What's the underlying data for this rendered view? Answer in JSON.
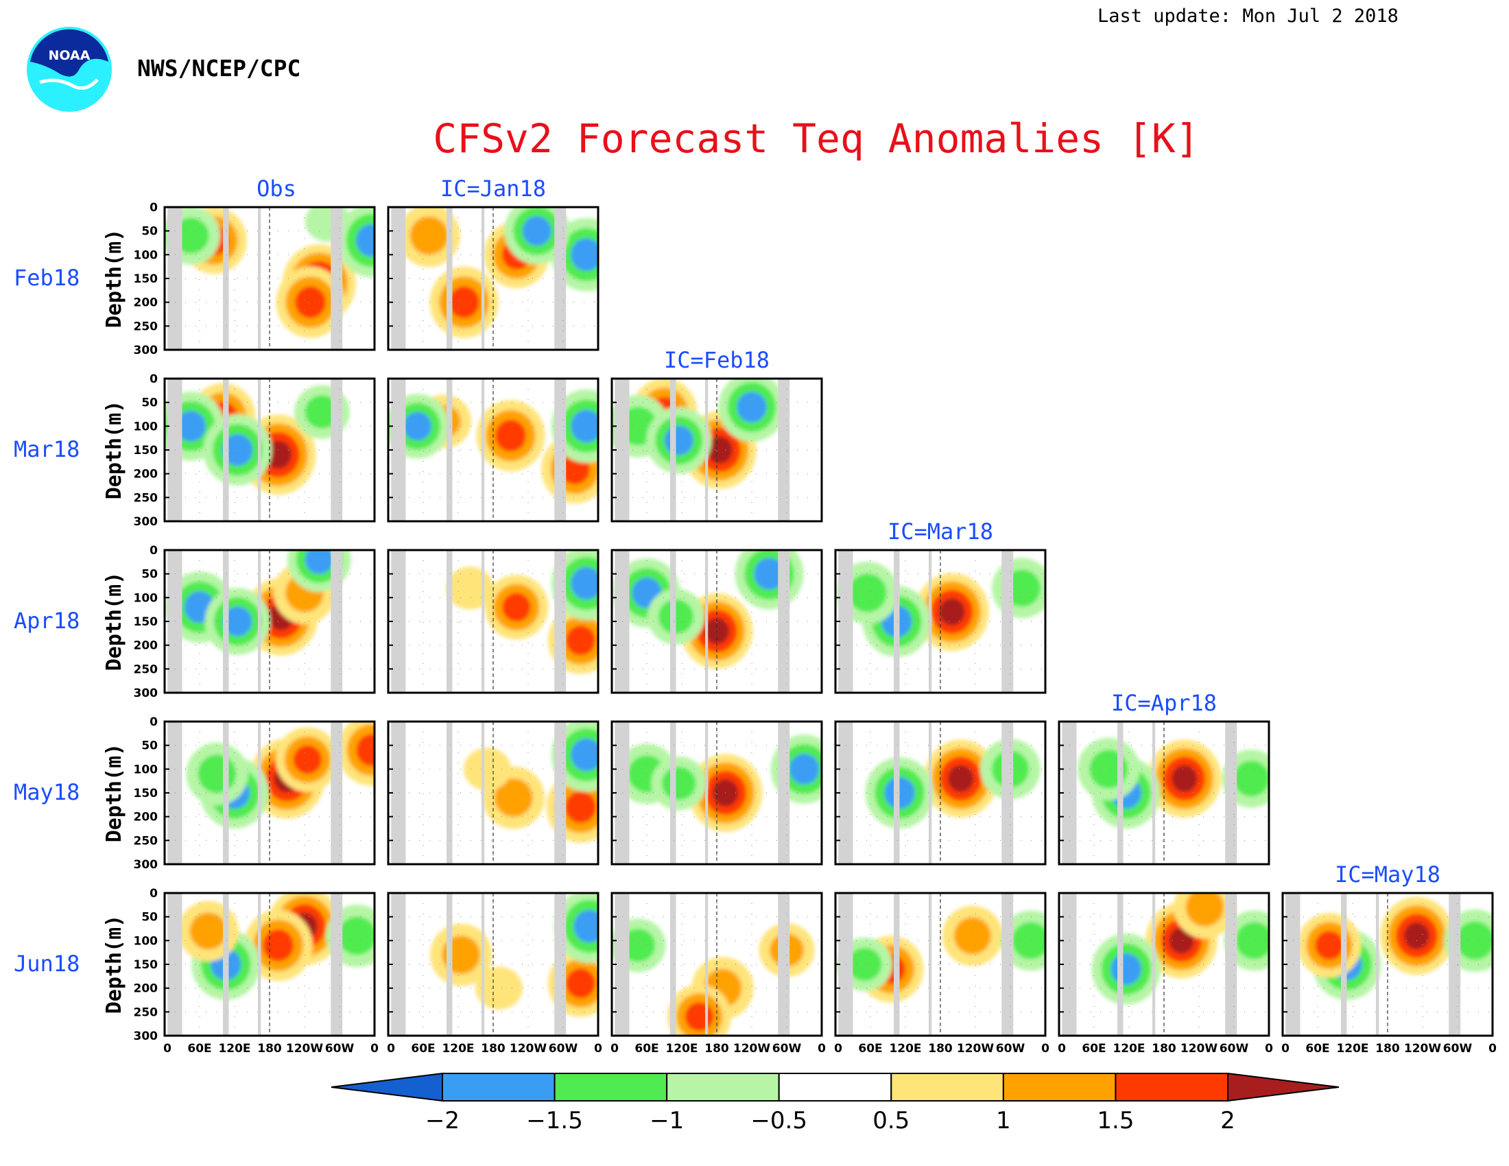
{
  "header": {
    "last_update": "Last update: Mon Jul  2 2018",
    "agency": "NWS/NCEP/CPC",
    "logo_text": "NOAA"
  },
  "colors": {
    "title": "#e8101a",
    "panel_labels": "#1a4cff",
    "land_mask": "#d3d3d3",
    "scale": [
      "#1560d0",
      "#3a9df4",
      "#50eb50",
      "#b6f5a6",
      "#ffffff",
      "#ffe47a",
      "#ffa200",
      "#ff3a00",
      "#a81e1e"
    ]
  },
  "chart_data": {
    "type": "heatmap",
    "title": "CFSv2 Forecast Teq Anomalies [K]",
    "ylabel": "Depth(m)",
    "y_ticks": [
      "0",
      "50",
      "100",
      "150",
      "200",
      "250",
      "300"
    ],
    "ylim": [
      0,
      300
    ],
    "x_ticks": [
      "0",
      "60E",
      "120E",
      "180",
      "120W",
      "60W",
      "0"
    ],
    "xlim_longitude": [
      0,
      360
    ],
    "rows": [
      "Feb18",
      "Mar18",
      "Apr18",
      "May18",
      "Jun18"
    ],
    "columns": [
      "Obs",
      "IC=Jan18",
      "IC=Feb18",
      "IC=Mar18",
      "IC=Apr18",
      "IC=May18"
    ],
    "colorbar": {
      "levels": [
        -2,
        -1.5,
        -1,
        -0.5,
        0.5,
        1,
        1.5,
        2
      ],
      "tick_labels": [
        "−2",
        "−1.5",
        "−1",
        "−0.5",
        "0.5",
        "1",
        "1.5",
        "2"
      ],
      "extend": "both"
    },
    "land_bands_longitude": [
      [
        5,
        30
      ],
      [
        100,
        110
      ],
      [
        160,
        165
      ],
      [
        285,
        305
      ]
    ],
    "reference_line_longitude": 180,
    "anomaly_patches": [
      {
        "panel": "Feb18/Obs",
        "features": [
          {
            "lon": 265,
            "depth": 160,
            "value": 2.3
          },
          {
            "lon": 250,
            "depth": 200,
            "value": 2.0
          },
          {
            "lon": 85,
            "depth": 70,
            "value": 1.8
          },
          {
            "lon": 355,
            "depth": 70,
            "value": -2.1
          },
          {
            "lon": 45,
            "depth": 60,
            "value": -1.4
          },
          {
            "lon": 280,
            "depth": 30,
            "value": -0.6
          }
        ]
      },
      {
        "panel": "Feb18/IC=Jan18",
        "features": [
          {
            "lon": 130,
            "depth": 200,
            "value": 2.0
          },
          {
            "lon": 220,
            "depth": 100,
            "value": 1.8
          },
          {
            "lon": 70,
            "depth": 60,
            "value": 1.6
          },
          {
            "lon": 340,
            "depth": 100,
            "value": -2.1
          },
          {
            "lon": 255,
            "depth": 50,
            "value": -1.8
          }
        ]
      },
      {
        "panel": "Mar18/Obs",
        "features": [
          {
            "lon": 195,
            "depth": 160,
            "value": 2.4
          },
          {
            "lon": 100,
            "depth": 80,
            "value": 1.8
          },
          {
            "lon": 45,
            "depth": 100,
            "value": -1.9
          },
          {
            "lon": 125,
            "depth": 150,
            "value": -2.0
          },
          {
            "lon": 270,
            "depth": 70,
            "value": -1.2
          }
        ]
      },
      {
        "panel": "Mar18/IC=Jan18",
        "features": [
          {
            "lon": 210,
            "depth": 120,
            "value": 2.0
          },
          {
            "lon": 320,
            "depth": 190,
            "value": 1.9
          },
          {
            "lon": 95,
            "depth": 90,
            "value": 1.2
          },
          {
            "lon": 340,
            "depth": 100,
            "value": -2.1
          },
          {
            "lon": 50,
            "depth": 100,
            "value": -1.7
          }
        ]
      },
      {
        "panel": "Mar18/IC=Feb18",
        "features": [
          {
            "lon": 185,
            "depth": 150,
            "value": 2.3
          },
          {
            "lon": 90,
            "depth": 70,
            "value": 1.8
          },
          {
            "lon": 240,
            "depth": 60,
            "value": -1.9
          },
          {
            "lon": 45,
            "depth": 100,
            "value": -1.6
          },
          {
            "lon": 115,
            "depth": 130,
            "value": -1.8
          }
        ]
      },
      {
        "panel": "Apr18/Obs",
        "features": [
          {
            "lon": 200,
            "depth": 140,
            "value": 2.3
          },
          {
            "lon": 240,
            "depth": 90,
            "value": 1.6
          },
          {
            "lon": 60,
            "depth": 120,
            "value": -2.0
          },
          {
            "lon": 125,
            "depth": 150,
            "value": -1.8
          },
          {
            "lon": 265,
            "depth": 20,
            "value": -1.7
          }
        ]
      },
      {
        "panel": "Apr18/IC=Jan18",
        "features": [
          {
            "lon": 220,
            "depth": 120,
            "value": 1.7
          },
          {
            "lon": 330,
            "depth": 190,
            "value": 1.8
          },
          {
            "lon": 340,
            "depth": 70,
            "value": -2.1
          },
          {
            "lon": 140,
            "depth": 80,
            "value": 0.7
          }
        ]
      },
      {
        "panel": "Apr18/IC=Feb18",
        "features": [
          {
            "lon": 180,
            "depth": 170,
            "value": 2.2
          },
          {
            "lon": 60,
            "depth": 90,
            "value": -1.9
          },
          {
            "lon": 270,
            "depth": 50,
            "value": -2.0
          },
          {
            "lon": 110,
            "depth": 140,
            "value": -1.3
          }
        ]
      },
      {
        "panel": "Apr18/IC=Mar18",
        "features": [
          {
            "lon": 200,
            "depth": 130,
            "value": 2.3
          },
          {
            "lon": 105,
            "depth": 150,
            "value": -2.0
          },
          {
            "lon": 55,
            "depth": 90,
            "value": -1.6
          },
          {
            "lon": 320,
            "depth": 80,
            "value": -1.5
          }
        ]
      },
      {
        "panel": "May18/Obs",
        "features": [
          {
            "lon": 210,
            "depth": 120,
            "value": 2.4
          },
          {
            "lon": 245,
            "depth": 80,
            "value": 1.7
          },
          {
            "lon": 120,
            "depth": 150,
            "value": -2.0
          },
          {
            "lon": 90,
            "depth": 110,
            "value": -1.6
          },
          {
            "lon": 355,
            "depth": 60,
            "value": 2.0
          }
        ]
      },
      {
        "panel": "May18/IC=Jan18",
        "features": [
          {
            "lon": 215,
            "depth": 160,
            "value": 1.6
          },
          {
            "lon": 330,
            "depth": 180,
            "value": 2.0
          },
          {
            "lon": 340,
            "depth": 70,
            "value": -2.1
          },
          {
            "lon": 170,
            "depth": 100,
            "value": 0.7
          }
        ]
      },
      {
        "panel": "May18/IC=Feb18",
        "features": [
          {
            "lon": 195,
            "depth": 150,
            "value": 2.3
          },
          {
            "lon": 60,
            "depth": 110,
            "value": -1.5
          },
          {
            "lon": 330,
            "depth": 100,
            "value": -1.9
          },
          {
            "lon": 115,
            "depth": 130,
            "value": -1.2
          }
        ]
      },
      {
        "panel": "May18/IC=Mar18",
        "features": [
          {
            "lon": 215,
            "depth": 120,
            "value": 2.3
          },
          {
            "lon": 110,
            "depth": 150,
            "value": -2.0
          },
          {
            "lon": 300,
            "depth": 100,
            "value": -1.5
          }
        ]
      },
      {
        "panel": "May18/IC=Apr18",
        "features": [
          {
            "lon": 215,
            "depth": 120,
            "value": 2.3
          },
          {
            "lon": 115,
            "depth": 150,
            "value": -2.0
          },
          {
            "lon": 85,
            "depth": 100,
            "value": -1.6
          },
          {
            "lon": 330,
            "depth": 120,
            "value": -1.4
          }
        ]
      },
      {
        "panel": "Jun18/Obs",
        "features": [
          {
            "lon": 240,
            "depth": 70,
            "value": 2.3
          },
          {
            "lon": 195,
            "depth": 110,
            "value": 2.0
          },
          {
            "lon": 105,
            "depth": 150,
            "value": -2.0
          },
          {
            "lon": 330,
            "depth": 90,
            "value": -1.6
          },
          {
            "lon": 75,
            "depth": 80,
            "value": 1.5
          }
        ]
      },
      {
        "panel": "Jun18/IC=Jan18",
        "features": [
          {
            "lon": 125,
            "depth": 130,
            "value": 1.6
          },
          {
            "lon": 330,
            "depth": 190,
            "value": 1.8
          },
          {
            "lon": 345,
            "depth": 70,
            "value": -2.1
          },
          {
            "lon": 190,
            "depth": 200,
            "value": 0.7
          }
        ]
      },
      {
        "panel": "Jun18/IC=Feb18",
        "features": [
          {
            "lon": 190,
            "depth": 200,
            "value": 1.6
          },
          {
            "lon": 150,
            "depth": 260,
            "value": 1.7
          },
          {
            "lon": 300,
            "depth": 120,
            "value": 1.2
          },
          {
            "lon": 45,
            "depth": 110,
            "value": -1.2
          }
        ]
      },
      {
        "panel": "Jun18/IC=Mar18",
        "features": [
          {
            "lon": 235,
            "depth": 90,
            "value": 1.5
          },
          {
            "lon": 95,
            "depth": 160,
            "value": 1.8
          },
          {
            "lon": 335,
            "depth": 100,
            "value": -1.5
          },
          {
            "lon": 50,
            "depth": 150,
            "value": -1.2
          }
        ]
      },
      {
        "panel": "Jun18/IC=Apr18",
        "features": [
          {
            "lon": 210,
            "depth": 100,
            "value": 2.2
          },
          {
            "lon": 115,
            "depth": 160,
            "value": -2.0
          },
          {
            "lon": 335,
            "depth": 100,
            "value": -1.5
          },
          {
            "lon": 250,
            "depth": 30,
            "value": 1.6
          }
        ]
      },
      {
        "panel": "Jun18/IC=May18",
        "features": [
          {
            "lon": 230,
            "depth": 90,
            "value": 2.3
          },
          {
            "lon": 110,
            "depth": 150,
            "value": -2.0
          },
          {
            "lon": 330,
            "depth": 100,
            "value": -1.6
          },
          {
            "lon": 80,
            "depth": 110,
            "value": 1.7
          }
        ]
      }
    ]
  }
}
